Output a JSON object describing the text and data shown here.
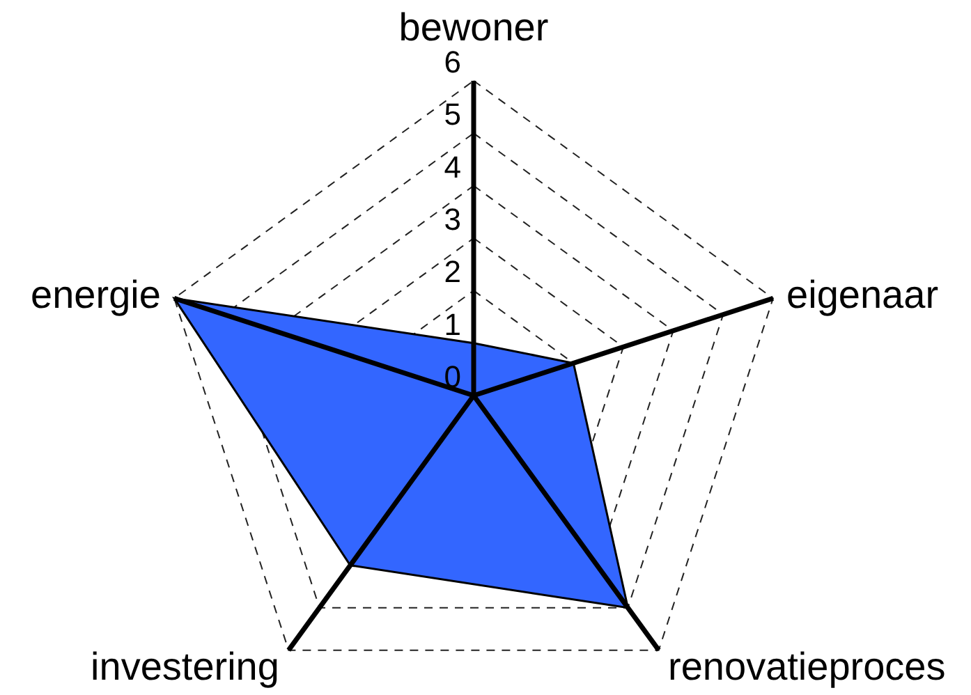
{
  "chart_data": {
    "type": "radar",
    "categories": [
      "bewoner",
      "eigenaar",
      "renovatieproces",
      "investering",
      "energie"
    ],
    "series": [
      {
        "color": "#3366ff",
        "values": [
          1,
          2,
          5,
          4,
          6
        ]
      }
    ],
    "ylim": [
      0,
      6
    ],
    "yticks": [
      0,
      1,
      2,
      3,
      4,
      5,
      6
    ],
    "grid": true
  }
}
